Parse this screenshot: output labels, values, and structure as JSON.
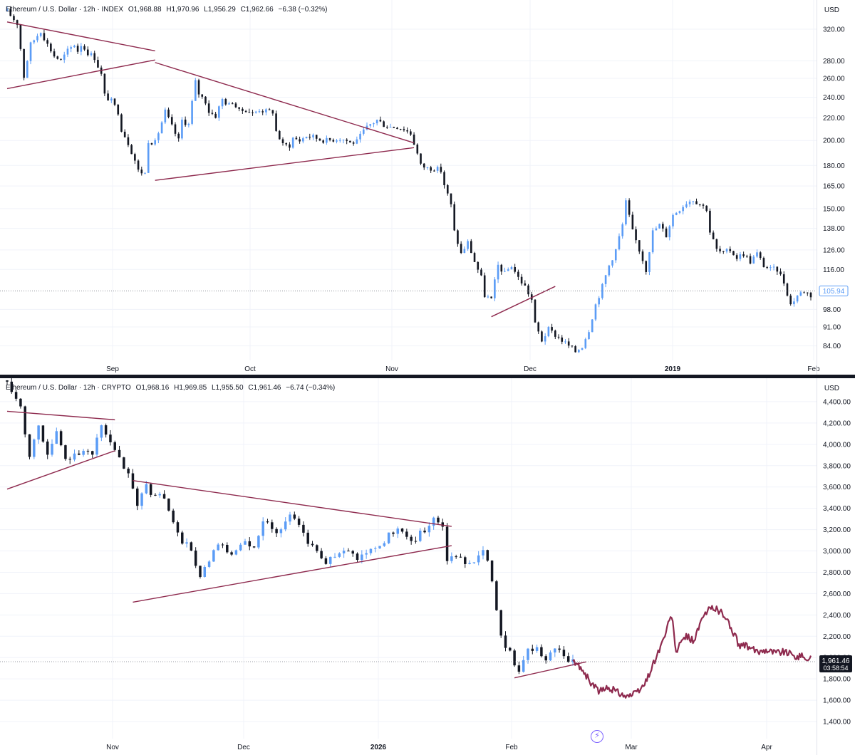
{
  "panes": [
    {
      "id": "top",
      "legend": {
        "symbol": "Ethereum / U.S. Dollar · 12h · INDEX",
        "open": "O1,968.88",
        "high": "H1,970.96",
        "low": "L1,956.29",
        "close": "C1,962.66",
        "change": "−6.38 (−0.32%)"
      },
      "currency": "USD",
      "colors": {
        "up": "#5b9cf6",
        "down": "#131722",
        "line": "#8e2a4e",
        "badge": "#5b9cf6"
      },
      "scale": "log",
      "chart_data": {
        "type": "candlestick",
        "x_labels": [
          "Sep",
          "Oct",
          "Nov",
          "Dec",
          "2019",
          "Feb"
        ],
        "x_label_bold": [
          "2019"
        ],
        "y_ticks": [
          320,
          280,
          260,
          240,
          220,
          200,
          180,
          165,
          150,
          138,
          126,
          116,
          98,
          91,
          84
        ],
        "y_tick_labels": [
          "320.00",
          "280.00",
          "260.00",
          "240.00",
          "220.00",
          "200.00",
          "180.00",
          "165.00",
          "150.00",
          "138.00",
          "126.00",
          "116.00",
          "98.00",
          "91.00",
          "84.00"
        ],
        "ylim": [
          79,
          362
        ],
        "last_price": 105.94,
        "last_price_label": "105.94",
        "gap_after_index": 104,
        "path": [
          [
            0,
            345
          ],
          [
            3,
            328
          ],
          [
            5,
            262
          ],
          [
            7,
            300
          ],
          [
            10,
            318
          ],
          [
            12,
            300
          ],
          [
            14,
            286
          ],
          [
            16,
            280
          ],
          [
            18,
            292
          ],
          [
            20,
            300
          ],
          [
            21,
            292
          ],
          [
            22,
            300
          ],
          [
            24,
            290
          ],
          [
            26,
            284
          ],
          [
            28,
            264
          ],
          [
            29,
            242
          ],
          [
            31,
            236
          ],
          [
            33,
            226
          ],
          [
            34,
            210
          ],
          [
            36,
            198
          ],
          [
            38,
            184
          ],
          [
            39,
            176
          ],
          [
            41,
            174
          ],
          [
            42,
            200
          ],
          [
            44,
            198
          ],
          [
            46,
            216
          ],
          [
            47,
            226
          ],
          [
            49,
            212
          ],
          [
            51,
            200
          ],
          [
            52,
            218
          ],
          [
            54,
            214
          ],
          [
            56,
            256
          ],
          [
            57,
            244
          ],
          [
            59,
            236
          ],
          [
            60,
            226
          ],
          [
            62,
            222
          ],
          [
            64,
            238
          ],
          [
            66,
            232
          ],
          [
            67,
            236
          ],
          [
            69,
            226
          ],
          [
            71,
            228
          ],
          [
            73,
            224
          ],
          [
            75,
            228
          ],
          [
            77,
            226
          ],
          [
            79,
            226
          ],
          [
            80,
            208
          ],
          [
            82,
            196
          ],
          [
            84,
            196
          ],
          [
            85,
            202
          ],
          [
            87,
            200
          ],
          [
            89,
            204
          ],
          [
            91,
            203
          ],
          [
            93,
            201
          ],
          [
            95,
            200
          ],
          [
            97,
            201
          ],
          [
            99,
            202
          ],
          [
            101,
            200
          ],
          [
            102,
            198
          ],
          [
            104,
            199
          ],
          [
            106,
            208
          ],
          [
            108,
            214
          ],
          [
            110,
            218
          ],
          [
            112,
            214
          ],
          [
            114,
            212
          ],
          [
            116,
            212
          ],
          [
            118,
            210
          ],
          [
            120,
            206
          ],
          [
            121,
            198
          ],
          [
            123,
            180
          ],
          [
            125,
            178
          ],
          [
            127,
            178
          ],
          [
            129,
            176
          ],
          [
            130,
            166
          ],
          [
            132,
            152
          ],
          [
            133,
            136
          ],
          [
            135,
            124
          ],
          [
            137,
            130
          ],
          [
            139,
            120
          ],
          [
            141,
            112
          ],
          [
            142,
            104
          ],
          [
            144,
            102
          ],
          [
            146,
            118
          ],
          [
            148,
            114
          ],
          [
            150,
            118
          ],
          [
            152,
            112
          ],
          [
            154,
            108
          ],
          [
            156,
            102
          ],
          [
            157,
            92
          ],
          [
            159,
            86
          ],
          [
            161,
            90
          ],
          [
            163,
            88
          ],
          [
            165,
            86
          ],
          [
            167,
            84
          ],
          [
            169,
            82
          ],
          [
            171,
            84
          ],
          [
            173,
            90
          ],
          [
            175,
            100
          ],
          [
            177,
            108
          ],
          [
            179,
            118
          ],
          [
            181,
            126
          ],
          [
            183,
            140
          ],
          [
            184,
            154
          ],
          [
            186,
            136
          ],
          [
            188,
            126
          ],
          [
            190,
            116
          ],
          [
            192,
            136
          ],
          [
            194,
            140
          ],
          [
            196,
            134
          ],
          [
            198,
            146
          ],
          [
            200,
            150
          ],
          [
            202,
            154
          ],
          [
            204,
            156
          ],
          [
            206,
            153
          ],
          [
            208,
            150
          ],
          [
            209,
            136
          ],
          [
            211,
            126
          ],
          [
            213,
            124
          ],
          [
            215,
            126
          ],
          [
            217,
            122
          ],
          [
            219,
            124
          ],
          [
            221,
            120
          ],
          [
            223,
            124
          ],
          [
            225,
            118
          ],
          [
            227,
            116
          ],
          [
            229,
            116
          ],
          [
            231,
            110
          ],
          [
            233,
            100
          ],
          [
            235,
            104
          ],
          [
            237,
            106
          ],
          [
            239,
            104
          ]
        ],
        "trendlines": [
          {
            "points": [
              [
                0,
                330
              ],
              [
                44,
                292
              ]
            ]
          },
          {
            "points": [
              [
                0,
                249
              ],
              [
                44,
                281
              ]
            ]
          },
          {
            "points": [
              [
                44,
                278
              ],
              [
                121,
                198
              ]
            ]
          },
          {
            "points": [
              [
                44,
                169
              ],
              [
                121,
                194
              ]
            ]
          },
          {
            "points": [
              [
                144,
                95
              ],
              [
                163,
                108
              ]
            ]
          }
        ]
      }
    },
    {
      "id": "bottom",
      "legend": {
        "symbol": "Ethereum / U.S. Dollar · 12h · CRYPTO",
        "open": "O1,968.16",
        "high": "H1,969.85",
        "low": "L1,955.50",
        "close": "C1,961.46",
        "change": "−6.74 (−0.34%)"
      },
      "currency": "USD",
      "colors": {
        "up": "#5b9cf6",
        "down": "#131722",
        "line": "#8e2a4e",
        "projection": "#8e2a4e",
        "badge": "#131722"
      },
      "scale": "linear",
      "chart_data": {
        "type": "candlestick",
        "x_labels": [
          "Nov",
          "Dec",
          "2026",
          "Feb",
          "Mar",
          "Apr"
        ],
        "x_label_bold": [
          "2026"
        ],
        "y_ticks": [
          4400,
          4200,
          4000,
          3800,
          3600,
          3400,
          3200,
          3000,
          2800,
          2600,
          2400,
          2200,
          2000,
          1800,
          1600,
          1400
        ],
        "y_tick_labels": [
          "4,400.00",
          "4,200.00",
          "4,000.00",
          "3,800.00",
          "3,600.00",
          "3,400.00",
          "3,200.00",
          "3,000.00",
          "2,800.00",
          "2,600.00",
          "2,400.00",
          "2,200.00",
          "2,000.00",
          "1,800.00",
          "1,600.00",
          "1,400.00"
        ],
        "ylim": [
          1240,
          4620
        ],
        "last_price": 1961.46,
        "last_price_label": "1,961.46",
        "countdown": "03:58:54",
        "path": [
          [
            0,
            4600
          ],
          [
            3,
            4350
          ],
          [
            5,
            3900
          ],
          [
            7,
            4180
          ],
          [
            9,
            3900
          ],
          [
            11,
            4100
          ],
          [
            13,
            3850
          ],
          [
            15,
            3920
          ],
          [
            17,
            3950
          ],
          [
            19,
            3880
          ],
          [
            21,
            4200
          ],
          [
            23,
            4000
          ],
          [
            25,
            3850
          ],
          [
            27,
            3700
          ],
          [
            29,
            3450
          ],
          [
            31,
            3600
          ],
          [
            33,
            3520
          ],
          [
            35,
            3500
          ],
          [
            37,
            3250
          ],
          [
            39,
            3100
          ],
          [
            41,
            3000
          ],
          [
            43,
            2750
          ],
          [
            45,
            2900
          ],
          [
            47,
            3050
          ],
          [
            49,
            3000
          ],
          [
            51,
            2980
          ],
          [
            53,
            3080
          ],
          [
            55,
            3000
          ],
          [
            57,
            3300
          ],
          [
            59,
            3200
          ],
          [
            61,
            3200
          ],
          [
            63,
            3350
          ],
          [
            65,
            3250
          ],
          [
            67,
            3100
          ],
          [
            69,
            3000
          ],
          [
            71,
            2900
          ],
          [
            73,
            2950
          ],
          [
            75,
            3000
          ],
          [
            77,
            2950
          ],
          [
            79,
            2950
          ],
          [
            81,
            3020
          ],
          [
            83,
            3050
          ],
          [
            85,
            3140
          ],
          [
            87,
            3220
          ],
          [
            89,
            3100
          ],
          [
            91,
            3120
          ],
          [
            93,
            3200
          ],
          [
            95,
            3320
          ],
          [
            97,
            3250
          ],
          [
            98,
            2900
          ],
          [
            100,
            2950
          ],
          [
            102,
            2900
          ],
          [
            104,
            2920
          ],
          [
            106,
            3000
          ],
          [
            108,
            2750
          ],
          [
            110,
            2200
          ],
          [
            112,
            2050
          ],
          [
            114,
            1850
          ],
          [
            116,
            2050
          ],
          [
            118,
            2080
          ],
          [
            120,
            1980
          ],
          [
            122,
            2100
          ],
          [
            124,
            2000
          ],
          [
            126,
            1950
          ]
        ],
        "projection": [
          [
            126,
            1960
          ],
          [
            128,
            1900
          ],
          [
            130,
            1760
          ],
          [
            132,
            1680
          ],
          [
            134,
            1720
          ],
          [
            136,
            1680
          ],
          [
            138,
            1640
          ],
          [
            140,
            1660
          ],
          [
            142,
            1750
          ],
          [
            144,
            1950
          ],
          [
            146,
            2150
          ],
          [
            148,
            2400
          ],
          [
            149,
            2050
          ],
          [
            151,
            2200
          ],
          [
            153,
            2160
          ],
          [
            155,
            2380
          ],
          [
            157,
            2480
          ],
          [
            159,
            2430
          ],
          [
            161,
            2300
          ],
          [
            163,
            2120
          ],
          [
            165,
            2100
          ],
          [
            167,
            2050
          ],
          [
            169,
            2080
          ],
          [
            171,
            2050
          ],
          [
            173,
            2060
          ],
          [
            175,
            2020
          ],
          [
            177,
            2010
          ],
          [
            179,
            1990
          ]
        ],
        "trendlines": [
          {
            "points": [
              [
                0,
                4310
              ],
              [
                24,
                4230
              ]
            ]
          },
          {
            "points": [
              [
                0,
                3580
              ],
              [
                24,
                3940
              ]
            ]
          },
          {
            "points": [
              [
                28,
                3660
              ],
              [
                99,
                3230
              ]
            ]
          },
          {
            "points": [
              [
                28,
                2520
              ],
              [
                99,
                3050
              ]
            ]
          },
          {
            "points": [
              [
                113,
                1810
              ],
              [
                129,
                1960
              ]
            ]
          }
        ]
      }
    }
  ]
}
